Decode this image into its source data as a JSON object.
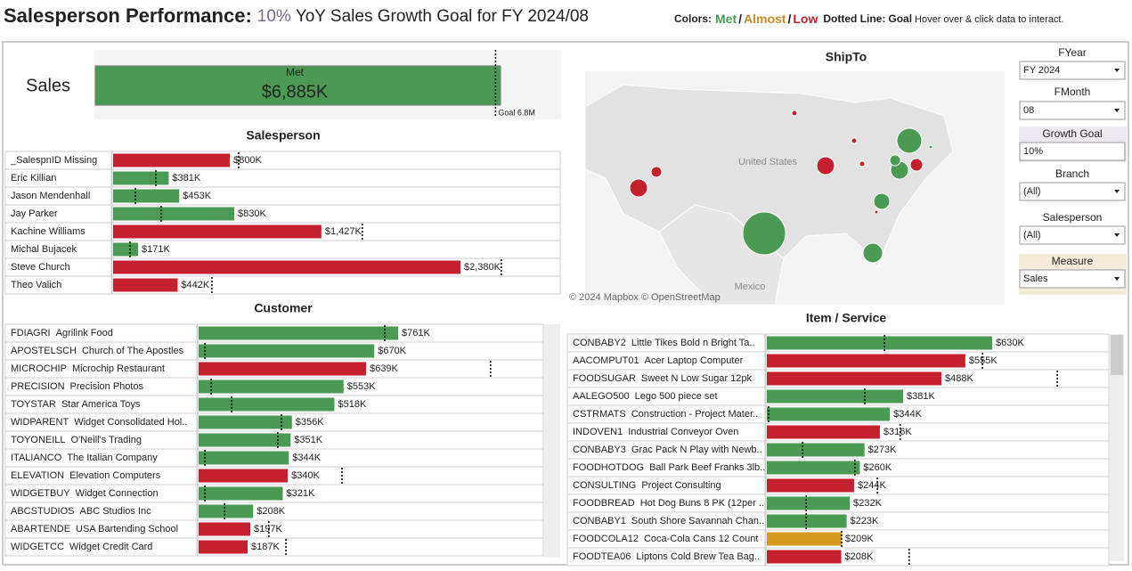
{
  "header": {
    "title": "Salesperson Performance:",
    "goal_pct": "10%",
    "title_rest": "YoY Sales Growth Goal for FY 2024/08",
    "legend": {
      "colors_label": "Colors:",
      "met": "Met",
      "sep1": "/",
      "almost": "Almost",
      "sep2": "/",
      "low": "Low",
      "dotted_label": "Dotted Line:",
      "dotted_value": "Goal",
      "hint": "Hover over & click data to interact."
    }
  },
  "sales_kpi": {
    "label": "Sales",
    "status": "Met",
    "value": 6885,
    "value_label": "$6,885K",
    "goal": 6800,
    "goal_label": "Goal 6.8M",
    "color": "#4a9a53"
  },
  "salesperson": {
    "title": "Salesperson",
    "rows": [
      {
        "name": "_SalespnID Missing",
        "value": 800,
        "value_label": "$800K",
        "goal": 860,
        "color": "#c4202f"
      },
      {
        "name": "Eric Killian",
        "value": 381,
        "value_label": "$381K",
        "goal": 293,
        "color": "#4a9a53"
      },
      {
        "name": "Jason Mendenhall",
        "value": 453,
        "value_label": "$453K",
        "goal": 153,
        "color": "#4a9a53"
      },
      {
        "name": "Jay Parker",
        "value": 830,
        "value_label": "$830K",
        "goal": 329,
        "color": "#4a9a53"
      },
      {
        "name": "Kachine Williams",
        "value": 1427,
        "value_label": "$1,427K",
        "goal": 1708,
        "color": "#c4202f"
      },
      {
        "name": "Michal Bujacek",
        "value": 171,
        "value_label": "$171K",
        "goal": 116,
        "color": "#4a9a53"
      },
      {
        "name": "Steve Church",
        "value": 2380,
        "value_label": "$2,380K",
        "goal": 2660,
        "color": "#c4202f"
      },
      {
        "name": "Theo Valich",
        "value": 442,
        "value_label": "$442K",
        "goal": 677,
        "color": "#c4202f"
      }
    ]
  },
  "customer": {
    "title": "Customer",
    "rows": [
      {
        "code": "FDIAGRI",
        "name": "Agrilink Food",
        "value": 761,
        "value_label": "$761K",
        "goal": 710,
        "color": "#4a9a53"
      },
      {
        "code": "APOSTELSCH",
        "name": "Church of The Apostles",
        "value": 670,
        "value_label": "$670K",
        "goal": 24,
        "color": "#4a9a53"
      },
      {
        "code": "MICROCHIP",
        "name": "Microchip Restaurant",
        "value": 639,
        "value_label": "$639K",
        "goal": 1114,
        "color": "#c4202f"
      },
      {
        "code": "PRECISION",
        "name": "Precision Photos",
        "value": 553,
        "value_label": "$553K",
        "goal": 48,
        "color": "#4a9a53"
      },
      {
        "code": "TOYSTAR",
        "name": "Star America Toys",
        "value": 518,
        "value_label": "$518K",
        "goal": 126,
        "color": "#4a9a53"
      },
      {
        "code": "WIDPARENT",
        "name": "Widget Consolidated Hol..",
        "value": 356,
        "value_label": "$356K",
        "goal": 316,
        "color": "#4a9a53"
      },
      {
        "code": "TOYONEILL",
        "name": "O'Neill's Trading",
        "value": 351,
        "value_label": "$351K",
        "goal": 302,
        "color": "#4a9a53"
      },
      {
        "code": "ITALIANCO",
        "name": "The Italian Company",
        "value": 344,
        "value_label": "$344K",
        "goal": 24,
        "color": "#4a9a53"
      },
      {
        "code": "ELEVATION",
        "name": "Elevation Computers",
        "value": 340,
        "value_label": "$340K",
        "goal": 547,
        "color": "#c4202f"
      },
      {
        "code": "WIDGETBUY",
        "name": "Widget Connection",
        "value": 321,
        "value_label": "$321K",
        "goal": 24,
        "color": "#4a9a53"
      },
      {
        "code": "ABCSTUDIOS",
        "name": "ABC Studios Inc",
        "value": 208,
        "value_label": "$208K",
        "goal": 99,
        "color": "#4a9a53"
      },
      {
        "code": "ABARTENDE",
        "name": "USA Bartending School",
        "value": 197,
        "value_label": "$197K",
        "goal": 268,
        "color": "#c4202f"
      },
      {
        "code": "WIDGETCC",
        "name": "Widget Credit Card",
        "value": 187,
        "value_label": "$187K",
        "goal": 333,
        "color": "#c4202f"
      }
    ]
  },
  "item": {
    "title": "Item / Service",
    "rows": [
      {
        "code": "CONBABY2",
        "name": "Little Tikes Bold n Bright Ta..",
        "value": 630,
        "value_label": "$630K",
        "goal": 329,
        "color": "#4a9a53"
      },
      {
        "code": "AACOMPUT01",
        "name": "Acer Laptop Computer",
        "value": 555,
        "value_label": "$555K",
        "goal": 603,
        "color": "#c4202f"
      },
      {
        "code": "FOODSUGAR",
        "name": "Sweet N Low Sugar 12pk",
        "value": 488,
        "value_label": "$488K",
        "goal": 812,
        "color": "#c4202f"
      },
      {
        "code": "AALEGO500",
        "name": "Lego 500 piece set",
        "value": 381,
        "value_label": "$381K",
        "goal": 274,
        "color": "#4a9a53"
      },
      {
        "code": "CSTRMATS",
        "name": "Construction - Project Mater..",
        "value": 344,
        "value_label": "$344K",
        "goal": 5,
        "color": "#4a9a53"
      },
      {
        "code": "INDOVEN1",
        "name": "Industrial Conveyor Oven",
        "value": 316,
        "value_label": "$316K",
        "goal": 373,
        "color": "#c4202f"
      },
      {
        "code": "CONBABY3",
        "name": "Grac Pack N Play with Newb..",
        "value": 273,
        "value_label": "$273K",
        "goal": 100,
        "color": "#4a9a53"
      },
      {
        "code": "FOODHOTDOG",
        "name": "Ball Park Beef Franks 3lb..",
        "value": 260,
        "value_label": "$260K",
        "goal": 246,
        "color": "#4a9a53"
      },
      {
        "code": "CONSULTING",
        "name": "Project Consulting",
        "value": 244,
        "value_label": "$244K",
        "goal": 309,
        "color": "#c4202f"
      },
      {
        "code": "FOODBREAD",
        "name": "Hot Dog Buns 8 PK (12per ..",
        "value": 232,
        "value_label": "$232K",
        "goal": 110,
        "color": "#4a9a53"
      },
      {
        "code": "CONBABY1",
        "name": "South Shore Savannah Chan..",
        "value": 223,
        "value_label": "$223K",
        "goal": 110,
        "color": "#4a9a53"
      },
      {
        "code": "FOODCOLA12",
        "name": "Coca-Cola Cans 12 Count",
        "value": 209,
        "value_label": "$209K",
        "goal": 209,
        "color": "#d69a1e"
      },
      {
        "code": "FOODTEA06",
        "name": "Liptons Cold Brew Tea Bag..",
        "value": 208,
        "value_label": "$208K",
        "goal": 398,
        "color": "#c4202f"
      }
    ]
  },
  "map": {
    "title": "ShipTo",
    "attribution": "© 2024 Mapbox © OpenStreetMap",
    "label_us": "United States",
    "label_mexico": "Mexico"
  },
  "filters": [
    {
      "label": "FYear",
      "value": "FY 2024"
    },
    {
      "label": "FMonth",
      "value": "08"
    },
    {
      "label": "Growth Goal",
      "value": "10%"
    },
    {
      "label": "Branch",
      "value": "(All)"
    },
    {
      "label": "Salesperson",
      "value": "(All)"
    },
    {
      "label": "Measure",
      "value": "Sales"
    }
  ]
}
